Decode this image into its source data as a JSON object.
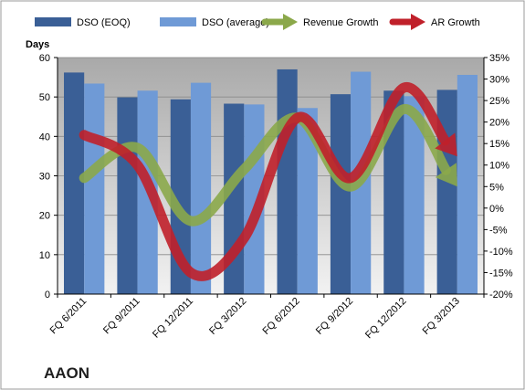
{
  "company_label": "AAON",
  "chart_data": {
    "type": "bar",
    "categories": [
      "FQ 6/2011",
      "FQ 9/2011",
      "FQ 12/2011",
      "FQ 3/2012",
      "FQ 6/2012",
      "FQ 9/2012",
      "FQ 12/2012",
      "FQ 3/2013"
    ],
    "series": [
      {
        "name": "DSO (EOQ)",
        "type": "bar",
        "axis": "left",
        "color": "#3a5f96",
        "values": [
          56.2,
          49.9,
          49.4,
          48.3,
          57.0,
          50.7,
          51.6,
          51.8
        ]
      },
      {
        "name": "DSO (average)",
        "type": "bar",
        "axis": "left",
        "color": "#6f9ad6",
        "values": [
          53.4,
          51.6,
          53.6,
          48.1,
          47.2,
          56.4,
          50.2,
          55.6
        ]
      },
      {
        "name": "Revenue Growth",
        "type": "line",
        "axis": "right",
        "color": "#8ba84a",
        "values": [
          0.07,
          0.14,
          -0.03,
          0.09,
          0.21,
          0.05,
          0.23,
          0.05
        ]
      },
      {
        "name": "AR Growth",
        "type": "line",
        "axis": "right",
        "color": "#c0202a",
        "values": [
          0.17,
          0.1,
          -0.15,
          -0.07,
          0.21,
          0.07,
          0.28,
          0.12
        ]
      }
    ],
    "left_axis": {
      "title": "Days",
      "min": 0,
      "max": 60,
      "step": 10,
      "ticks": [
        "0",
        "10",
        "20",
        "30",
        "40",
        "50",
        "60"
      ]
    },
    "right_axis": {
      "min": -0.2,
      "max": 0.35,
      "step": 0.05,
      "ticks": [
        "-20%",
        "-15%",
        "-10%",
        "-5%",
        "0%",
        "5%",
        "10%",
        "15%",
        "20%",
        "25%",
        "30%",
        "35%"
      ]
    },
    "grid": true,
    "legend_position": "top"
  }
}
